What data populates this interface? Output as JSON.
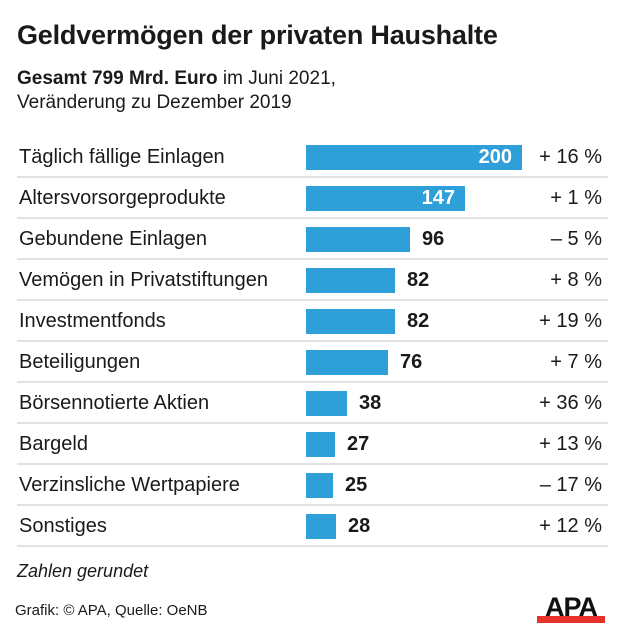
{
  "header": {
    "title": "Geldvermögen der privaten Haushalte",
    "subtitle_bold": "Gesamt 799 Mrd. Euro",
    "subtitle_rest": " im Juni 2021,",
    "subtitle_line2": "Veränderung zu Dezember 2019"
  },
  "chart_data": {
    "type": "bar",
    "orientation": "horizontal",
    "title": "Geldvermögen der privaten Haushalte",
    "subtitle": "Gesamt 799 Mrd. Euro im Juni 2021, Veränderung zu Dezember 2019",
    "unit": "Mrd. Euro",
    "xlim": [
      0,
      200
    ],
    "grid": false,
    "legend": "none",
    "categories": [
      "Täglich fällige Einlagen",
      "Altersvorsorgeprodukte",
      "Gebundene Einlagen",
      "Vemögen in Privatstiftungen",
      "Investmentfonds",
      "Beteiligungen",
      "Börsennotierte Aktien",
      "Bargeld",
      "Verzinsliche Wertpapiere",
      "Sonstiges"
    ],
    "values": [
      200,
      147,
      96,
      82,
      82,
      76,
      38,
      27,
      25,
      28
    ],
    "value_labels": [
      "200",
      "147",
      "96",
      "82",
      "82",
      "76",
      "38",
      "27",
      "25",
      "28"
    ],
    "change_labels": [
      "+ 16 %",
      "+ 1 %",
      "– 5 %",
      "+ 8 %",
      "+ 19 %",
      "+ 7 %",
      "+ 36 %",
      "+ 13 %",
      "– 17 %",
      "+ 12 %"
    ],
    "change_percent": [
      16,
      1,
      -5,
      8,
      19,
      7,
      36,
      13,
      -17,
      12
    ],
    "bar_color": "#2e9fd8",
    "annotation": "Zahlen gerundet"
  },
  "footer": {
    "note": "Zahlen gerundet",
    "credit": "Grafik: © APA, Quelle: OeNB",
    "logo_text": "APA",
    "logo_accent": "#e8312a"
  }
}
